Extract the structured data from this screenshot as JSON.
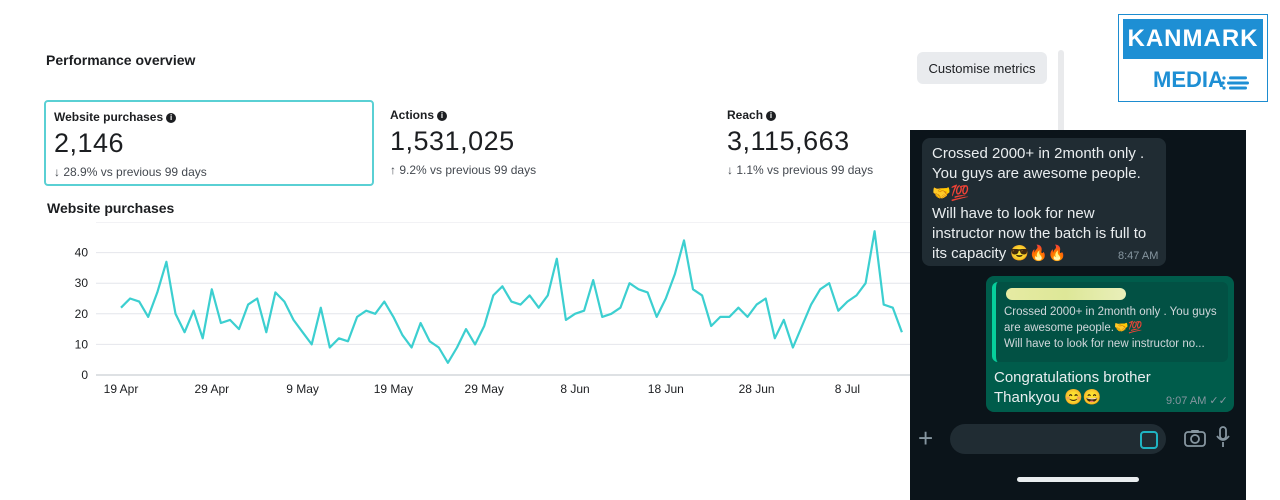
{
  "performance": {
    "title": "Performance overview",
    "customise_label": "Customise metrics",
    "metrics": [
      {
        "label": "Website purchases",
        "value": "2,146",
        "change": "↓ 28.9% vs previous 99 days"
      },
      {
        "label": "Actions",
        "value": "1,531,025",
        "change": "↑ 9.2% vs previous 99 days"
      },
      {
        "label": "Reach",
        "value": "3,115,663",
        "change": "↓ 1.1% vs previous 99 days"
      }
    ],
    "chart_title": "Website purchases"
  },
  "chart_data": {
    "type": "line",
    "title": "Website purchases",
    "x_tick_labels": [
      "19 Apr",
      "29 Apr",
      "9 May",
      "19 May",
      "29 May",
      "8 Jun",
      "18 Jun",
      "28 Jun",
      "8 Jul"
    ],
    "y_ticks": [
      0,
      10,
      20,
      30,
      40,
      50
    ],
    "ylim": [
      0,
      50
    ],
    "grid": true,
    "line_color": "#3ccfd0",
    "series": [
      {
        "values": [
          22,
          25,
          24,
          19,
          27,
          37,
          20,
          14,
          21,
          12,
          28,
          17,
          18,
          15,
          23,
          25,
          14,
          27,
          24,
          18,
          14,
          10,
          22,
          9,
          12,
          11,
          19,
          21,
          20,
          24,
          19,
          13,
          9,
          17,
          11,
          9,
          4,
          9,
          15,
          10,
          16,
          26,
          29,
          24,
          23,
          26,
          22,
          26,
          38,
          18,
          20,
          21,
          31,
          19,
          20,
          22,
          30,
          28,
          27,
          19,
          25,
          33,
          44,
          28,
          26,
          16,
          19,
          19,
          22,
          19,
          23,
          25,
          12,
          18,
          9,
          16,
          23,
          28,
          30,
          21,
          24,
          26,
          30,
          47,
          23,
          22,
          14
        ]
      }
    ]
  },
  "logo": {
    "line1": "KANMARK",
    "line2": "MEDIA"
  },
  "chat": {
    "incoming_text": "Crossed 2000+ in 2month only .\nYou guys are awesome people.\n🤝💯\nWill have to look for new instructor now the batch is full to its capacity 😎🔥🔥",
    "incoming_time": "8:47 AM",
    "quoted_text": "Crossed 2000+ in 2month only . You guys are awesome people.🤝💯\nWill have to look for new instructor no...",
    "outgoing_text": "Congratulations brother\nThankyou 😊😄",
    "outgoing_time": "9:07 AM",
    "input_placeholder": ""
  }
}
